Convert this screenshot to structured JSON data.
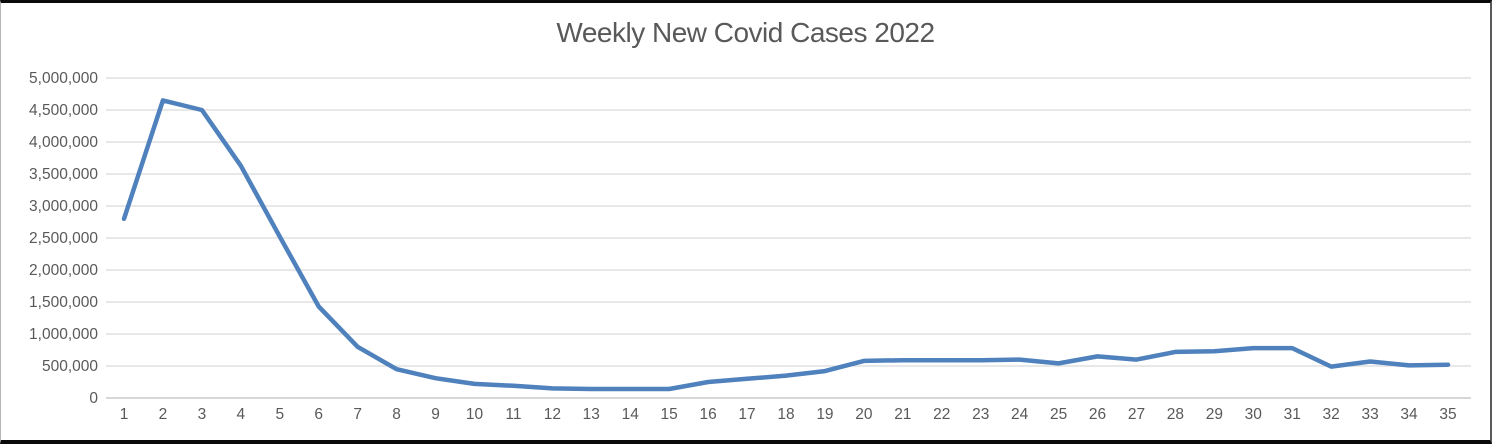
{
  "window": {
    "background": "#ffffff",
    "frame_border_color": "#0a0a0a"
  },
  "chart_data": {
    "type": "line",
    "title": "Weekly New Covid Cases 2022",
    "xlabel": "",
    "ylabel": "",
    "categories": [
      1,
      2,
      3,
      4,
      5,
      6,
      7,
      8,
      9,
      10,
      11,
      12,
      13,
      14,
      15,
      16,
      17,
      18,
      19,
      20,
      21,
      22,
      23,
      24,
      25,
      26,
      27,
      28,
      29,
      30,
      31,
      32,
      33,
      34,
      35
    ],
    "values": [
      2800000,
      4650000,
      4500000,
      3630000,
      2520000,
      1430000,
      800000,
      450000,
      310000,
      220000,
      190000,
      150000,
      140000,
      140000,
      140000,
      250000,
      300000,
      350000,
      420000,
      580000,
      590000,
      590000,
      590000,
      600000,
      540000,
      650000,
      600000,
      720000,
      730000,
      780000,
      780000,
      490000,
      570000,
      510000,
      520000
    ],
    "ylim": [
      0,
      5000000
    ],
    "y_tick_step": 500000,
    "y_tick_labels": [
      "0",
      "500,000",
      "1,000,000",
      "1,500,000",
      "2,000,000",
      "2,500,000",
      "3,000,000",
      "3,500,000",
      "4,000,000",
      "4,500,000",
      "5,000,000"
    ],
    "grid": "horizontal",
    "legend": "none",
    "colors": {
      "line": "#4F81BD",
      "gridline": "#D9D9D9",
      "axis_line": "#BFBFBF",
      "text": "#595959"
    }
  }
}
